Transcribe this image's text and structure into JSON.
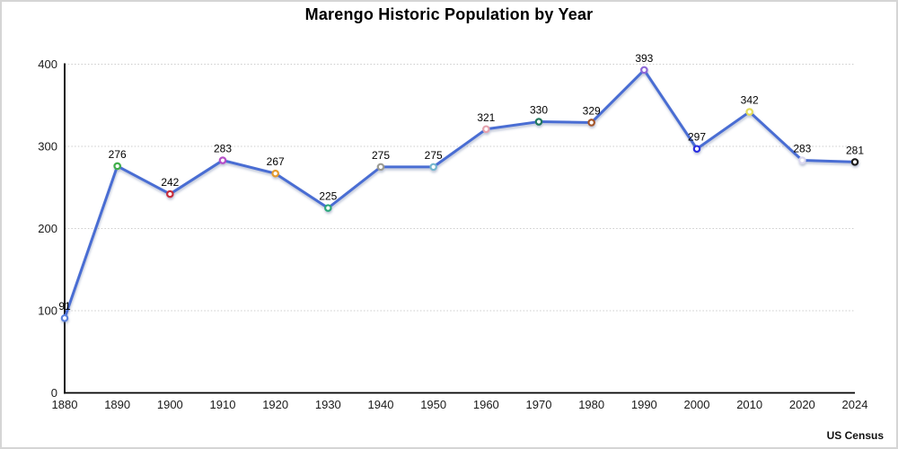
{
  "header": {
    "title": "Marengo Historic Population by Year"
  },
  "footer": {
    "source": "US Census"
  },
  "chart_data": {
    "type": "line",
    "title": "Marengo Historic Population by Year",
    "categories": [
      "1880",
      "1890",
      "1900",
      "1910",
      "1920",
      "1930",
      "1940",
      "1950",
      "1960",
      "1970",
      "1980",
      "1990",
      "2000",
      "2010",
      "2020",
      "2024"
    ],
    "values": [
      91,
      276,
      242,
      283,
      267,
      225,
      275,
      275,
      321,
      330,
      329,
      393,
      297,
      342,
      283,
      281
    ],
    "xlabel": "",
    "ylabel": "",
    "ylim": [
      0,
      400
    ],
    "yticks": [
      0,
      100,
      200,
      300,
      400
    ],
    "grid": "horizontal-dotted",
    "legend": "none",
    "line_color": "#4a6dd3",
    "axis_color": "#000000",
    "gridline_color": "#cccccc",
    "label_color": "#1a1a1a",
    "marker_colors": [
      "#5b82dd",
      "#3fae49",
      "#c62f3e",
      "#b550c8",
      "#e49b2d",
      "#29a87a",
      "#9b9b93",
      "#73b6ce",
      "#e5a1ad",
      "#20785f",
      "#a4562c",
      "#8d68d8",
      "#2b2fe0",
      "#e3dc5a",
      "#d9d6ee",
      "#1a1a1a"
    ],
    "source": "US Census"
  }
}
